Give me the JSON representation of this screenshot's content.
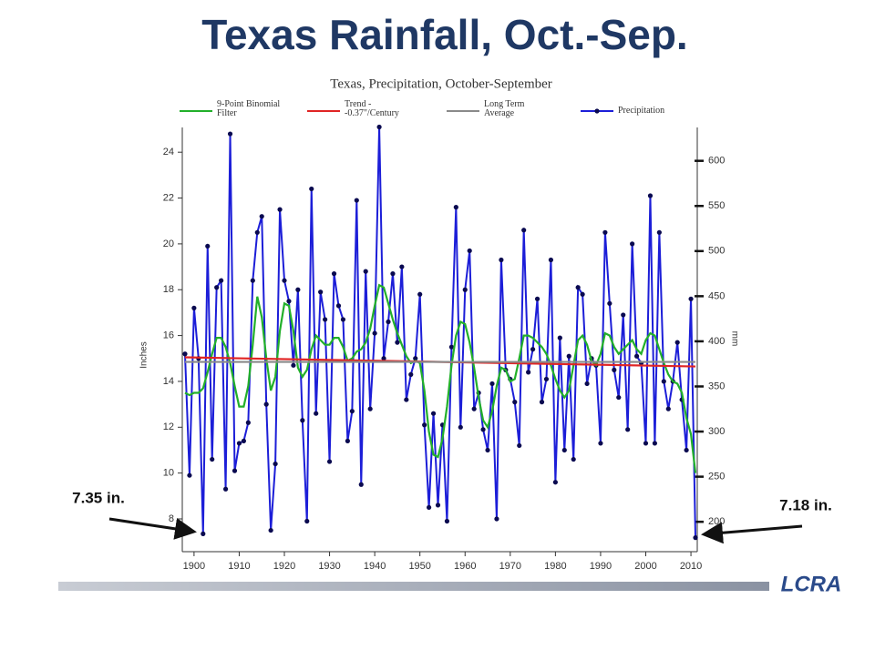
{
  "slide_title": "Texas Rainfall, Oct.-Sep.",
  "logo": "LCRA",
  "chart_data": {
    "type": "line",
    "title": "Texas, Precipitation, October-September",
    "y_label": "Inches",
    "y2_label": "mm",
    "annotations": [
      "7.35 in.",
      "7.18 in."
    ],
    "x": [
      1898,
      1899,
      1900,
      1901,
      1902,
      1903,
      1904,
      1905,
      1906,
      1907,
      1908,
      1909,
      1910,
      1911,
      1912,
      1913,
      1914,
      1915,
      1916,
      1917,
      1918,
      1919,
      1920,
      1921,
      1922,
      1923,
      1924,
      1925,
      1926,
      1927,
      1928,
      1929,
      1930,
      1931,
      1932,
      1933,
      1934,
      1935,
      1936,
      1937,
      1938,
      1939,
      1940,
      1941,
      1942,
      1943,
      1944,
      1945,
      1946,
      1947,
      1948,
      1949,
      1950,
      1951,
      1952,
      1953,
      1954,
      1955,
      1956,
      1957,
      1958,
      1959,
      1960,
      1961,
      1962,
      1963,
      1964,
      1965,
      1966,
      1967,
      1968,
      1969,
      1970,
      1971,
      1972,
      1973,
      1974,
      1975,
      1976,
      1977,
      1978,
      1979,
      1980,
      1981,
      1982,
      1983,
      1984,
      1985,
      1986,
      1987,
      1988,
      1989,
      1990,
      1991,
      1992,
      1993,
      1994,
      1995,
      1996,
      1997,
      1998,
      1999,
      2000,
      2001,
      2002,
      2003,
      2004,
      2005,
      2006,
      2007,
      2008,
      2009,
      2010,
      2011
    ],
    "xlim": [
      1897.4,
      2011.4
    ],
    "xticks": [
      1900,
      1910,
      1920,
      1930,
      1940,
      1950,
      1960,
      1970,
      1980,
      1990,
      2000,
      2010
    ],
    "ylim": [
      6.57,
      25.08
    ],
    "yticks": [
      8,
      10,
      12,
      14,
      16,
      18,
      20,
      22,
      24
    ],
    "y2lim": [
      166.9,
      637.0
    ],
    "y2ticks": [
      200,
      250,
      300,
      350,
      400,
      450,
      500,
      550,
      600
    ],
    "series": [
      {
        "name": "Precipitation",
        "color": "#1c1ed8",
        "markers": true,
        "values": [
          15.2,
          9.9,
          17.2,
          15.0,
          7.35,
          19.9,
          10.6,
          18.1,
          18.4,
          9.3,
          24.8,
          10.1,
          11.3,
          11.4,
          12.2,
          18.4,
          20.5,
          21.2,
          13.0,
          7.5,
          10.4,
          21.5,
          18.4,
          17.5,
          14.7,
          18.0,
          12.3,
          7.9,
          22.4,
          12.6,
          17.9,
          16.7,
          10.5,
          18.7,
          17.3,
          16.7,
          11.4,
          12.7,
          21.9,
          9.5,
          18.8,
          12.8,
          16.1,
          25.1,
          15.0,
          16.6,
          18.7,
          15.7,
          19.0,
          13.2,
          14.3,
          15.0,
          17.8,
          12.1,
          8.5,
          12.6,
          8.6,
          12.1,
          7.9,
          15.5,
          21.6,
          12.0,
          18.0,
          19.7,
          12.8,
          13.5,
          11.9,
          11.0,
          13.9,
          8.0,
          19.3,
          14.5,
          14.1,
          13.1,
          11.2,
          20.6,
          14.4,
          15.4,
          17.6,
          13.1,
          14.1,
          19.3,
          9.6,
          15.9,
          11.0,
          15.1,
          10.6,
          18.1,
          17.8,
          13.9,
          15.0,
          14.7,
          11.3,
          20.5,
          17.4,
          14.5,
          13.3,
          16.9,
          11.9,
          20.0,
          15.1,
          14.8,
          11.3,
          22.1,
          11.3,
          20.5,
          14.0,
          12.8,
          14.0,
          15.7,
          13.2,
          11.0,
          17.6,
          7.18
        ]
      },
      {
        "name": "9-Point Binomial Filter",
        "color": "#22b02a",
        "markers": false,
        "values": [
          13.5,
          13.4,
          13.5,
          13.5,
          13.7,
          14.4,
          15.2,
          15.9,
          15.9,
          15.5,
          14.8,
          13.8,
          12.9,
          12.9,
          13.8,
          15.6,
          17.7,
          16.8,
          15.0,
          13.6,
          14.2,
          16.2,
          17.4,
          17.3,
          16.2,
          14.6,
          14.2,
          14.5,
          15.4,
          16.0,
          15.8,
          15.6,
          15.6,
          15.9,
          15.9,
          15.5,
          14.9,
          15.0,
          15.3,
          15.4,
          15.7,
          16.3,
          17.3,
          18.2,
          18.1,
          17.4,
          16.7,
          16.1,
          15.6,
          15.1,
          14.8,
          14.9,
          14.8,
          13.6,
          11.8,
          10.8,
          10.7,
          11.5,
          12.9,
          14.7,
          16.0,
          16.6,
          16.5,
          15.7,
          14.6,
          13.3,
          12.3,
          12.0,
          12.7,
          13.8,
          14.6,
          14.5,
          14.0,
          14.1,
          15.0,
          16.0,
          16.0,
          15.9,
          15.7,
          15.5,
          15.2,
          14.7,
          14.1,
          13.6,
          13.3,
          13.6,
          14.7,
          15.8,
          16.0,
          15.6,
          14.9,
          14.7,
          15.2,
          16.1,
          16.0,
          15.5,
          15.2,
          15.4,
          15.6,
          15.8,
          15.4,
          15.2,
          15.8,
          16.1,
          16.0,
          15.4,
          14.8,
          14.3,
          14.0,
          13.9,
          13.5,
          12.4,
          11.7,
          10.0
        ]
      },
      {
        "name": "Trend --0.37\"/Century",
        "color": "#e02424",
        "markers": false,
        "x": [
          1898,
          2011
        ],
        "values": [
          15.05,
          14.65
        ]
      },
      {
        "name": "Long Term Average",
        "color": "#8a8a8a",
        "markers": false,
        "x": [
          1898,
          2011
        ],
        "values": [
          14.85,
          14.85
        ]
      }
    ]
  }
}
